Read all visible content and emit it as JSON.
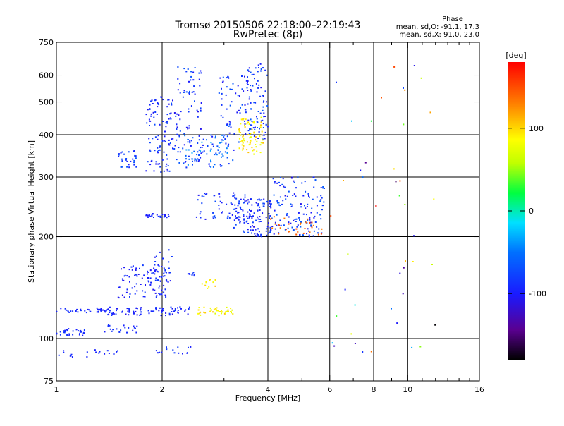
{
  "chart_data": {
    "type": "scatter",
    "title": "Tromsø 20150506 22:18:00–22:19:43",
    "subtitle": "RwPretec (8p)",
    "stats": {
      "heading": "Phase",
      "o_line": "mean, sd,O: -91.1, 17.3",
      "x_line": "mean, sd,X:  91.0, 23.0"
    },
    "xlabel": "Frequency [MHz]",
    "ylabel": "Stationary phase Virtual Height [km]",
    "x_scale": "log",
    "y_scale": "log",
    "xlim": [
      1,
      16
    ],
    "ylim": [
      75,
      750
    ],
    "xticks": [
      1,
      2,
      4,
      6,
      8,
      10,
      16
    ],
    "xtick_labels": [
      "1",
      "2",
      "4",
      "6",
      "8",
      "10",
      "16"
    ],
    "x_minor_ticks": [
      3,
      5,
      7,
      9,
      11,
      12,
      13,
      14,
      15
    ],
    "yticks": [
      75,
      100,
      200,
      300,
      400,
      500,
      600,
      750
    ],
    "ytick_labels": [
      "75",
      "100",
      "200",
      "300",
      "400",
      "500",
      "600",
      "750"
    ],
    "grid_x": [
      2,
      4,
      6,
      8,
      10
    ],
    "grid_y": [
      100,
      200,
      300,
      400,
      500,
      600
    ],
    "colorbar": {
      "label": "[deg]",
      "range": [
        -180,
        180
      ],
      "ticks": [
        100,
        0,
        -100
      ],
      "tick_labels": [
        "100",
        "0",
        "-100"
      ]
    },
    "clusters": [
      {
        "name": "blue-1.0-1.4-120",
        "x": [
          1.0,
          1.4
        ],
        "y": [
          119,
          123
        ],
        "n": 35,
        "phase": [
          -100,
          -85
        ]
      },
      {
        "name": "blue-1.0-1.3-105",
        "x": [
          1.0,
          1.25
        ],
        "y": [
          102,
          107
        ],
        "n": 30,
        "phase": [
          -100,
          -85
        ]
      },
      {
        "name": "blue-1.3-1.7-105",
        "x": [
          1.3,
          1.7
        ],
        "y": [
          104,
          110
        ],
        "n": 20,
        "phase": [
          -100,
          -85
        ]
      },
      {
        "name": "blue-1.0-1.5-90",
        "x": [
          1.0,
          1.5
        ],
        "y": [
          88,
          93
        ],
        "n": 20,
        "phase": [
          -100,
          -85
        ]
      },
      {
        "name": "blue-1.4-2.2-120",
        "x": [
          1.4,
          2.2
        ],
        "y": [
          117,
          124
        ],
        "n": 70,
        "phase": [
          -110,
          -80
        ]
      },
      {
        "name": "blue-1.5-2.1-140",
        "x": [
          1.5,
          2.1
        ],
        "y": [
          132,
          165
        ],
        "n": 90,
        "phase": [
          -110,
          -80
        ]
      },
      {
        "name": "blue-1.9-2.15-160",
        "x": [
          1.9,
          2.15
        ],
        "y": [
          140,
          185
        ],
        "n": 25,
        "phase": [
          -110,
          -80
        ]
      },
      {
        "name": "blue-2.2-2.4-130",
        "x": [
          2.2,
          2.4
        ],
        "y": [
          118,
          124
        ],
        "n": 12,
        "phase": [
          -105,
          -80
        ]
      },
      {
        "name": "blue-2.35-2.5-155",
        "x": [
          2.35,
          2.5
        ],
        "y": [
          153,
          157
        ],
        "n": 8,
        "phase": [
          -100,
          -80
        ]
      },
      {
        "name": "yellow-2.5-3.2-120",
        "x": [
          2.5,
          3.2
        ],
        "y": [
          117,
          124
        ],
        "n": 40,
        "phase": [
          70,
          110
        ]
      },
      {
        "name": "yellow-2.6-2.8-145",
        "x": [
          2.6,
          2.85
        ],
        "y": [
          140,
          150
        ],
        "n": 12,
        "phase": [
          80,
          110
        ]
      },
      {
        "name": "blue-1.9-2.5-90",
        "x": [
          1.9,
          2.5
        ],
        "y": [
          88,
          95
        ],
        "n": 15,
        "phase": [
          -100,
          -80
        ]
      },
      {
        "name": "blue-1.8-2.1-230",
        "x": [
          1.8,
          2.1
        ],
        "y": [
          228,
          234
        ],
        "n": 25,
        "phase": [
          -105,
          -85
        ]
      },
      {
        "name": "blue-1.5-1.7-350",
        "x": [
          1.5,
          1.7
        ],
        "y": [
          320,
          360
        ],
        "n": 30,
        "phase": [
          -100,
          -60
        ]
      },
      {
        "name": "blue-1.8-2.2-380",
        "x": [
          1.8,
          2.2
        ],
        "y": [
          310,
          520
        ],
        "n": 110,
        "phase": [
          -110,
          -70
        ]
      },
      {
        "name": "blue-2.2-2.6-600",
        "x": [
          2.2,
          2.6
        ],
        "y": [
          330,
          640
        ],
        "n": 80,
        "phase": [
          -110,
          -60
        ]
      },
      {
        "name": "blue-2.3-3.2-350",
        "x": [
          2.3,
          3.2
        ],
        "y": [
          320,
          400
        ],
        "n": 90,
        "phase": [
          -100,
          -30
        ]
      },
      {
        "name": "blue-2.5-3.5-240",
        "x": [
          2.5,
          3.5
        ],
        "y": [
          225,
          270
        ],
        "n": 60,
        "phase": [
          -110,
          -70
        ]
      },
      {
        "name": "blue-2.9-3.6-500",
        "x": [
          2.9,
          3.6
        ],
        "y": [
          380,
          600
        ],
        "n": 70,
        "phase": [
          -110,
          -60
        ]
      },
      {
        "name": "blue-3.2-4.1-250",
        "x": [
          3.2,
          4.1
        ],
        "y": [
          200,
          260
        ],
        "n": 120,
        "phase": [
          -110,
          -70
        ]
      },
      {
        "name": "blue-3.5-4.0-500",
        "x": [
          3.5,
          4.0
        ],
        "y": [
          380,
          650
        ],
        "n": 80,
        "phase": [
          -110,
          -60
        ]
      },
      {
        "name": "yellow-3.3-3.9-380",
        "x": [
          3.3,
          3.9
        ],
        "y": [
          350,
          450
        ],
        "n": 70,
        "phase": [
          70,
          110
        ]
      },
      {
        "name": "blue-4.0-5.8-230",
        "x": [
          4.0,
          5.8
        ],
        "y": [
          200,
          300
        ],
        "n": 140,
        "phase": [
          -110,
          -60
        ]
      },
      {
        "name": "orange-4.0-5.8-210",
        "x": [
          4.0,
          5.8
        ],
        "y": [
          200,
          230
        ],
        "n": 30,
        "phase": [
          130,
          160
        ]
      },
      {
        "name": "scatter-6-12",
        "x": [
          6.0,
          12.0
        ],
        "y": [
          90,
          650
        ],
        "n": 45,
        "phase": [
          -180,
          180
        ]
      }
    ]
  }
}
